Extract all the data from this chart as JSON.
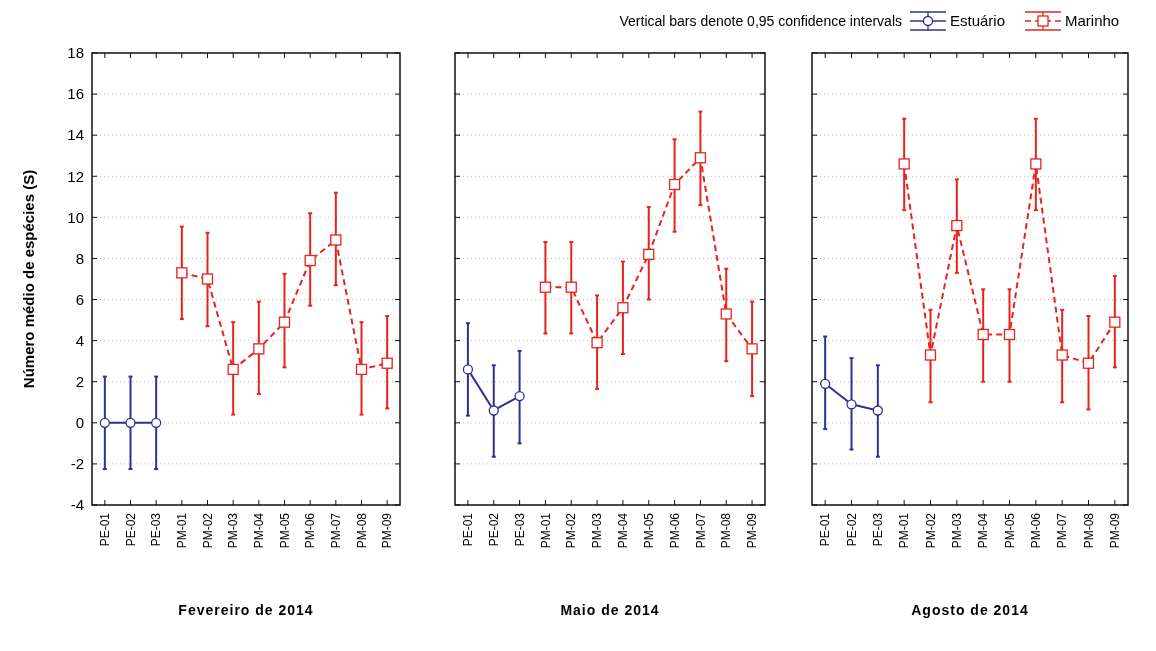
{
  "chart_data": [
    {
      "type": "line",
      "xlabel": "Fevereiro de 2014",
      "ylabel": "Número médio de espécies (S)",
      "categories": [
        "PE-01",
        "PE-02",
        "PE-03",
        "PM-01",
        "PM-02",
        "PM-03",
        "PM-04",
        "PM-05",
        "PM-06",
        "PM-07",
        "PM-08",
        "PM-09"
      ],
      "ylim": [
        -4,
        18
      ],
      "yticks": [
        -4,
        -2,
        0,
        2,
        4,
        6,
        8,
        10,
        12,
        14,
        16,
        18
      ],
      "grid": "y",
      "series": [
        {
          "color": "#2e3192",
          "marker": "circle",
          "line_style": "solid",
          "values": [
            0,
            0,
            0,
            null,
            null,
            null,
            null,
            null,
            null,
            null,
            null,
            null
          ],
          "errors": [
            [
              -2.25,
              2.25
            ],
            [
              -2.25,
              2.25
            ],
            [
              -2.25,
              2.25
            ],
            null,
            null,
            null,
            null,
            null,
            null,
            null,
            null,
            null
          ]
        },
        {
          "color": "#e8231d",
          "marker": "square",
          "line_style": "dashed",
          "values": [
            null,
            null,
            null,
            7.3,
            7.0,
            2.6,
            3.6,
            4.9,
            7.9,
            8.9,
            2.6,
            2.9
          ],
          "errors": [
            null,
            null,
            null,
            [
              5.05,
              9.55
            ],
            [
              4.7,
              9.25
            ],
            [
              0.4,
              4.9
            ],
            [
              1.4,
              5.9
            ],
            [
              2.7,
              7.25
            ],
            [
              5.7,
              10.2
            ],
            [
              6.7,
              11.2
            ],
            [
              0.4,
              4.9
            ],
            [
              0.7,
              5.2
            ]
          ]
        }
      ]
    },
    {
      "type": "line",
      "xlabel": "Maio de 2014",
      "categories": [
        "PE-01",
        "PE-02",
        "PE-03",
        "PM-01",
        "PM-02",
        "PM-03",
        "PM-04",
        "PM-05",
        "PM-06",
        "PM-07",
        "PM-08",
        "PM-09"
      ],
      "ylim": [
        -4,
        18
      ],
      "yticks": [
        -4,
        -2,
        0,
        2,
        4,
        6,
        8,
        10,
        12,
        14,
        16,
        18
      ],
      "grid": "y",
      "tick_labels": "x",
      "series": [
        {
          "color": "#2e3192",
          "marker": "circle",
          "line_style": "solid",
          "values": [
            2.6,
            0.6,
            1.3,
            null,
            null,
            null,
            null,
            null,
            null,
            null,
            null,
            null
          ],
          "errors": [
            [
              0.35,
              4.85
            ],
            [
              -1.65,
              2.8
            ],
            [
              -1.0,
              3.5
            ],
            null,
            null,
            null,
            null,
            null,
            null,
            null,
            null,
            null
          ]
        },
        {
          "color": "#e8231d",
          "marker": "square",
          "line_style": "dashed",
          "values": [
            null,
            null,
            null,
            6.6,
            6.6,
            3.9,
            5.6,
            8.2,
            11.6,
            12.9,
            5.3,
            3.6
          ],
          "errors": [
            null,
            null,
            null,
            [
              4.35,
              8.8
            ],
            [
              4.35,
              8.8
            ],
            [
              1.65,
              6.2
            ],
            [
              3.35,
              7.85
            ],
            [
              6.0,
              10.5
            ],
            [
              9.3,
              13.8
            ],
            [
              10.6,
              15.15
            ],
            [
              3.0,
              7.5
            ],
            [
              1.3,
              5.9
            ]
          ]
        }
      ]
    },
    {
      "type": "line",
      "xlabel": "Agosto de 2014",
      "categories": [
        "PE-01",
        "PE-02",
        "PE-03",
        "PM-01",
        "PM-02",
        "PM-03",
        "PM-04",
        "PM-05",
        "PM-06",
        "PM-07",
        "PM-08",
        "PM-09"
      ],
      "ylim": [
        -4,
        18
      ],
      "yticks": [
        -4,
        -2,
        0,
        2,
        4,
        6,
        8,
        10,
        12,
        14,
        16,
        18
      ],
      "grid": "y",
      "tick_labels": "x",
      "legend": "top right",
      "annotations": [
        "Vertical bars denote 0,95 confidence intervals"
      ],
      "series": [
        {
          "name": "Estuário",
          "color": "#2e3192",
          "marker": "circle",
          "line_style": "solid",
          "values": [
            1.9,
            0.9,
            0.6,
            null,
            null,
            null,
            null,
            null,
            null,
            null,
            null,
            null
          ],
          "errors": [
            [
              -0.3,
              4.2
            ],
            [
              -1.3,
              3.15
            ],
            [
              -1.65,
              2.8
            ],
            null,
            null,
            null,
            null,
            null,
            null,
            null,
            null,
            null
          ]
        },
        {
          "name": "Marinho",
          "color": "#e8231d",
          "marker": "square",
          "line_style": "dashed",
          "values": [
            null,
            null,
            null,
            12.6,
            3.3,
            9.6,
            4.3,
            4.3,
            12.6,
            3.3,
            2.9,
            4.9
          ],
          "errors": [
            null,
            null,
            null,
            [
              10.35,
              14.8
            ],
            [
              1.0,
              5.5
            ],
            [
              7.3,
              11.85
            ],
            [
              2.0,
              6.5
            ],
            [
              2.0,
              6.5
            ],
            [
              10.35,
              14.8
            ],
            [
              1.0,
              5.5
            ],
            [
              0.65,
              5.2
            ],
            [
              2.7,
              7.15
            ]
          ]
        }
      ]
    }
  ]
}
